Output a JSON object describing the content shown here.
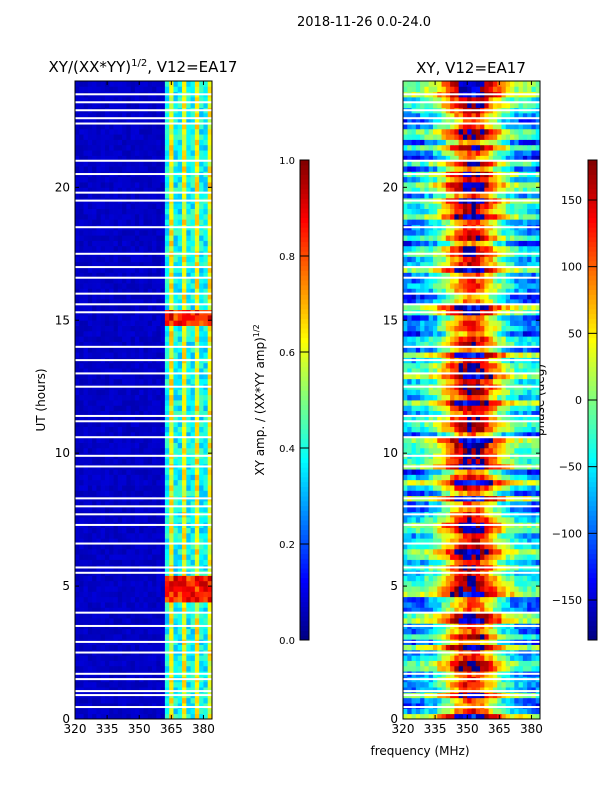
{
  "chart_data": [
    {
      "type": "heatmap",
      "suptitle": "2018-11-26 0.0-24.0",
      "title_main": "XY/(XX*YY)",
      "title_sup": "1/2",
      "title_tail": ", V12=EA17",
      "xlabel": "frequency (MHz)",
      "ylabel": "UT (hours)",
      "xlim": [
        320,
        384
      ],
      "ylim": [
        0,
        24
      ],
      "xticks": [
        320,
        335,
        350,
        365,
        380
      ],
      "yticks": [
        0,
        5,
        10,
        15,
        20
      ],
      "colorbar": {
        "label_main": "XY amp. / (XX*YY amp)",
        "label_sup": "1/2",
        "range": [
          0,
          1
        ],
        "ticks": [
          "0.0",
          "0.2",
          "0.4",
          "0.6",
          "0.8",
          "1.0"
        ],
        "tick_values": [
          0,
          0.2,
          0.4,
          0.6,
          0.8,
          1.0
        ],
        "colormap": "jet"
      },
      "description_values": {
        "background": 0.05,
        "band_MHz": [
          362,
          383
        ],
        "band_level": 0.4,
        "bright_hours": [
          [
            14.8,
            15.4
          ],
          [
            4.4,
            5.4
          ]
        ],
        "bright_level": 0.9
      }
    },
    {
      "type": "heatmap",
      "title": "XY, V12=EA17",
      "xlim": [
        320,
        384
      ],
      "ylim": [
        0,
        24
      ],
      "xticks": [
        320,
        335,
        350,
        365,
        380
      ],
      "yticks": [
        0,
        5,
        10,
        15,
        20
      ],
      "colorbar": {
        "label": "phase (deg)",
        "range": [
          -180,
          180
        ],
        "ticks": [
          "−150",
          "−100",
          "−50",
          "0",
          "50",
          "100",
          "150"
        ],
        "tick_values": [
          -150,
          -100,
          -50,
          0,
          50,
          100,
          150
        ],
        "colormap": "jet"
      },
      "description_values": {
        "center_MHz": 352,
        "center_phase": 160,
        "edge_phase": -60
      }
    }
  ],
  "flagged_hours": [
    0.45,
    0.9,
    1.05,
    1.5,
    1.7,
    2.5,
    2.9,
    3.5,
    4.0,
    5.5,
    5.7,
    6.6,
    7.3,
    7.7,
    8.0,
    8.3,
    9.5,
    9.9,
    10.6,
    11.2,
    11.4,
    12.5,
    13.0,
    13.5,
    14.0,
    15.3,
    15.6,
    16.0,
    16.6,
    17.0,
    17.5,
    18.5,
    19.5,
    19.8,
    20.5,
    21.0,
    22.4,
    22.6,
    22.9,
    23.2,
    23.5
  ]
}
